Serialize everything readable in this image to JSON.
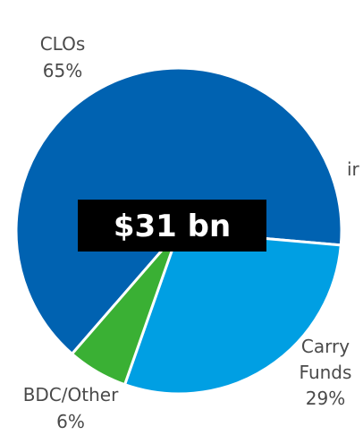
{
  "chart_data": {
    "type": "pie",
    "title": "",
    "center_label": "$31 bn",
    "slices": [
      {
        "label_lines": [
          "CLOs",
          "65%"
        ],
        "value": 65,
        "color": "#0062b1"
      },
      {
        "label_lines": [
          "Carry",
          "Funds",
          "29%"
        ],
        "value": 29,
        "color": "#009fe3"
      },
      {
        "label_lines": [
          "BDC/Other",
          "6%"
        ],
        "value": 6,
        "color": "#3ab034"
      }
    ],
    "cut_off_text": "ir",
    "center_box_color": "#000000",
    "separator_color": "#ffffff"
  }
}
